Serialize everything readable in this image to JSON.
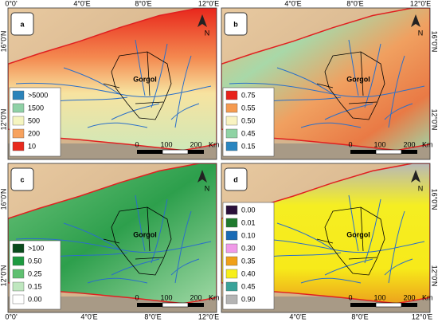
{
  "panels": [
    {
      "letter": "a",
      "region": "Gorgol",
      "north": "N",
      "scale": [
        "0",
        "100",
        "200",
        "Km"
      ],
      "legend": [
        {
          "label": ">5000",
          "color": "#2b83ba"
        },
        {
          "label": "1500",
          "color": "#8fd1a6"
        },
        {
          "label": "500",
          "color": "#f5f5c0"
        },
        {
          "label": "200",
          "color": "#f7a25e"
        },
        {
          "label": "10",
          "color": "#e82a1d"
        }
      ]
    },
    {
      "letter": "b",
      "region": "Gorgol",
      "north": "N",
      "scale": [
        "0",
        "100",
        "200",
        "Km"
      ],
      "legend": [
        {
          "label": "0.75",
          "color": "#e8231c"
        },
        {
          "label": "0.55",
          "color": "#f59a4f"
        },
        {
          "label": "0.50",
          "color": "#f9f3c1"
        },
        {
          "label": "0.45",
          "color": "#8fd3a4"
        },
        {
          "label": "0.15",
          "color": "#2a86c0"
        }
      ]
    },
    {
      "letter": "c",
      "region": "Gorgol",
      "north": "N",
      "scale": [
        "0",
        "100",
        "200",
        "Km"
      ],
      "legend": [
        {
          "label": ">100",
          "color": "#0a4a1c"
        },
        {
          "label": "0.50",
          "color": "#1d9a40"
        },
        {
          "label": "0.25",
          "color": "#5fc070"
        },
        {
          "label": "0.15",
          "color": "#bfe7bf"
        },
        {
          "label": "0.00",
          "color": "#ffffff"
        }
      ]
    },
    {
      "letter": "d",
      "region": "Gorgol",
      "north": "N",
      "scale": [
        "0",
        "100",
        "200",
        "Km"
      ],
      "legend": [
        {
          "label": "0.00",
          "color": "#2a0f3a"
        },
        {
          "label": "0.01",
          "color": "#1f7a2e"
        },
        {
          "label": "0.10",
          "color": "#1a6bb5"
        },
        {
          "label": "0.30",
          "color": "#f09ae8"
        },
        {
          "label": "0.35",
          "color": "#f0a018"
        },
        {
          "label": "0.40",
          "color": "#f7ef1a"
        },
        {
          "label": "0.45",
          "color": "#3aa39a"
        },
        {
          "label": "0.90",
          "color": "#b4b4b4"
        }
      ]
    }
  ],
  "axes": {
    "top_left": [
      "0°0'",
      "4°0'E",
      "8°0'E",
      "12°0'E"
    ],
    "top_right": [
      "4°0'E",
      "8°0'E",
      "12°0'E"
    ],
    "bottom_left": [
      "0°0'",
      "4°0'E",
      "8°0'E",
      "12°0'E"
    ],
    "bottom_right": [
      "4°0'E",
      "8°0'E",
      "12°0'E"
    ],
    "left": [
      "16°0'N",
      "12°0'N",
      "16°0'N",
      "12°0'N"
    ],
    "right": [
      "16°0'N",
      "12°0'N",
      "16°0'N",
      "12°0'N"
    ]
  }
}
